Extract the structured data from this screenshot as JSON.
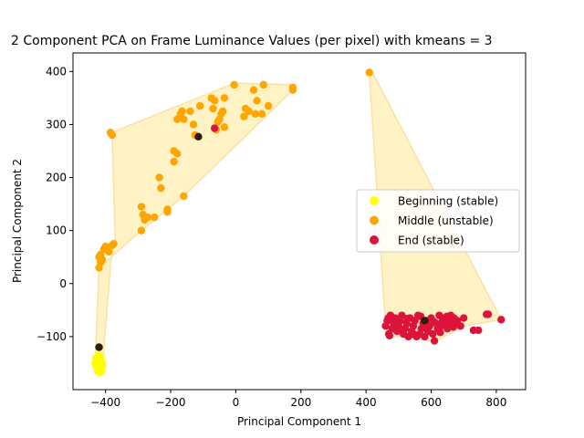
{
  "chart_data": {
    "type": "scatter",
    "title": "2 Component PCA on Frame Luminance Values (per pixel) with kmeans = 3",
    "xlabel": "Principal Component 1",
    "ylabel": "Principal Component 2",
    "xlim": [
      -500,
      890
    ],
    "ylim": [
      -200,
      435
    ],
    "xticks": [
      -400,
      -200,
      0,
      200,
      400,
      600,
      800
    ],
    "yticks": [
      -100,
      0,
      100,
      200,
      300,
      400
    ],
    "xtick_labels": [
      "−400",
      "−200",
      "0",
      "200",
      "400",
      "600",
      "800"
    ],
    "ytick_labels": [
      "−100",
      "0",
      "100",
      "200",
      "300",
      "400"
    ],
    "grid": false,
    "legend_position": "center-right",
    "colors": {
      "beginning": "#ffff00",
      "middle": "#ffa500",
      "end": "#dc143c",
      "hull_fill": "#fff2c4",
      "hull_edge": "#fbe1a3",
      "centroid": "#2b1d0a"
    },
    "series": [
      {
        "name": "Beginning (stable)",
        "color": "#ffff00",
        "points": [
          [
            -430,
            -140
          ],
          [
            -425,
            -150
          ],
          [
            -420,
            -160
          ],
          [
            -415,
            -145
          ],
          [
            -410,
            -155
          ],
          [
            -430,
            -155
          ],
          [
            -420,
            -135
          ],
          [
            -412,
            -165
          ],
          [
            -425,
            -165
          ],
          [
            -418,
            -148
          ],
          [
            -428,
            -145
          ],
          [
            -415,
            -138
          ],
          [
            -422,
            -158
          ],
          [
            -410,
            -150
          ],
          [
            -432,
            -150
          ],
          [
            -418,
            -168
          ]
        ]
      },
      {
        "name": "Middle (unstable)",
        "color": "#ffa500",
        "points": [
          [
            -420,
            30
          ],
          [
            -420,
            50
          ],
          [
            -415,
            40
          ],
          [
            -410,
            45
          ],
          [
            -405,
            65
          ],
          [
            -400,
            70
          ],
          [
            -390,
            60
          ],
          [
            -380,
            72
          ],
          [
            -375,
            75
          ],
          [
            -415,
            55
          ],
          [
            -385,
            285
          ],
          [
            -380,
            280
          ],
          [
            -290,
            100
          ],
          [
            -290,
            145
          ],
          [
            -285,
            130
          ],
          [
            -280,
            120
          ],
          [
            -280,
            125
          ],
          [
            -270,
            125
          ],
          [
            -250,
            125
          ],
          [
            -235,
            200
          ],
          [
            -230,
            180
          ],
          [
            -210,
            140
          ],
          [
            -210,
            135
          ],
          [
            -190,
            250
          ],
          [
            -190,
            230
          ],
          [
            -180,
            245
          ],
          [
            -180,
            310
          ],
          [
            -170,
            320
          ],
          [
            -165,
            325
          ],
          [
            -160,
            310
          ],
          [
            -160,
            165
          ],
          [
            -140,
            325
          ],
          [
            -130,
            300
          ],
          [
            -125,
            280
          ],
          [
            -110,
            335
          ],
          [
            -75,
            350
          ],
          [
            -70,
            330
          ],
          [
            -65,
            345
          ],
          [
            -60,
            290
          ],
          [
            -55,
            305
          ],
          [
            -50,
            310
          ],
          [
            -45,
            320
          ],
          [
            -40,
            325
          ],
          [
            -35,
            350
          ],
          [
            -35,
            295
          ],
          [
            -5,
            375
          ],
          [
            25,
            315
          ],
          [
            30,
            330
          ],
          [
            40,
            325
          ],
          [
            55,
            365
          ],
          [
            60,
            320
          ],
          [
            65,
            345
          ],
          [
            80,
            320
          ],
          [
            85,
            375
          ],
          [
            100,
            335
          ],
          [
            175,
            365
          ],
          [
            175,
            370
          ],
          [
            410,
            398
          ]
        ]
      },
      {
        "name": "End (stable)",
        "color": "#dc143c",
        "points": [
          [
            -65,
            293
          ],
          [
            460,
            -80
          ],
          [
            465,
            -70
          ],
          [
            470,
            -95
          ],
          [
            475,
            -60
          ],
          [
            480,
            -85
          ],
          [
            485,
            -75
          ],
          [
            490,
            -65
          ],
          [
            495,
            -90
          ],
          [
            500,
            -80
          ],
          [
            505,
            -70
          ],
          [
            510,
            -60
          ],
          [
            515,
            -95
          ],
          [
            520,
            -85
          ],
          [
            525,
            -75
          ],
          [
            530,
            -100
          ],
          [
            535,
            -65
          ],
          [
            540,
            -90
          ],
          [
            545,
            -80
          ],
          [
            550,
            -70
          ],
          [
            555,
            -100
          ],
          [
            560,
            -60
          ],
          [
            565,
            -95
          ],
          [
            570,
            -85
          ],
          [
            575,
            -75
          ],
          [
            580,
            -100
          ],
          [
            585,
            -70
          ],
          [
            590,
            -90
          ],
          [
            595,
            -80
          ],
          [
            600,
            -65
          ],
          [
            605,
            -95
          ],
          [
            610,
            -108
          ],
          [
            615,
            -75
          ],
          [
            620,
            -85
          ],
          [
            625,
            -60
          ],
          [
            630,
            -80
          ],
          [
            635,
            -70
          ],
          [
            640,
            -65
          ],
          [
            645,
            -75
          ],
          [
            650,
            -85
          ],
          [
            655,
            -70
          ],
          [
            660,
            -60
          ],
          [
            665,
            -80
          ],
          [
            670,
            -65
          ],
          [
            675,
            -75
          ],
          [
            680,
            -70
          ],
          [
            690,
            -80
          ],
          [
            700,
            -65
          ],
          [
            730,
            -88
          ],
          [
            745,
            -88
          ],
          [
            770,
            -58
          ],
          [
            775,
            -58
          ],
          [
            815,
            -68
          ],
          [
            472,
            -98
          ],
          [
            468,
            -65
          ],
          [
            488,
            -72
          ],
          [
            508,
            -88
          ],
          [
            528,
            -66
          ],
          [
            548,
            -96
          ],
          [
            568,
            -62
          ],
          [
            588,
            -82
          ],
          [
            608,
            -72
          ],
          [
            628,
            -92
          ],
          [
            648,
            -62
          ],
          [
            668,
            -82
          ]
        ]
      }
    ],
    "centroids": [
      [
        -420,
        -120
      ],
      [
        -115,
        277
      ],
      [
        580,
        -70
      ]
    ],
    "hulls": [
      [
        [
          -430,
          -170
        ],
        [
          -410,
          -168
        ],
        [
          -405,
          -120
        ],
        [
          -380,
          70
        ],
        [
          -370,
          75
        ],
        [
          -380,
          285
        ],
        [
          -5,
          378
        ],
        [
          175,
          375
        ],
        [
          175,
          365
        ],
        [
          -160,
          165
        ],
        [
          -290,
          100
        ],
        [
          -420,
          30
        ],
        [
          -432,
          -150
        ]
      ],
      [
        [
          410,
          398
        ],
        [
          420,
          398
        ],
        [
          815,
          -68
        ],
        [
          700,
          -80
        ],
        [
          610,
          -110
        ],
        [
          530,
          -100
        ],
        [
          470,
          -100
        ],
        [
          460,
          -80
        ]
      ]
    ]
  }
}
